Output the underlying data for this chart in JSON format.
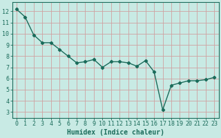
{
  "x": [
    0,
    1,
    2,
    3,
    4,
    5,
    6,
    7,
    8,
    9,
    10,
    11,
    12,
    13,
    14,
    15,
    16,
    17,
    18,
    19,
    20,
    21,
    22,
    23
  ],
  "y": [
    12.2,
    11.5,
    9.9,
    9.2,
    9.2,
    8.6,
    8.0,
    7.4,
    7.5,
    7.7,
    7.0,
    7.5,
    7.5,
    7.4,
    7.1,
    7.6,
    6.6,
    3.2,
    5.4,
    5.6,
    5.8,
    5.8,
    5.9,
    6.1
  ],
  "line_color": "#1a6b5a",
  "marker": "D",
  "marker_size": 2.2,
  "line_width": 1.0,
  "bg_color": "#c8eae4",
  "grid_color": "#aad4cc",
  "xlabel": "Humidex (Indice chaleur)",
  "xlabel_fontsize": 7,
  "ylabel_ticks": [
    3,
    4,
    5,
    6,
    7,
    8,
    9,
    10,
    11,
    12
  ],
  "xlim": [
    -0.5,
    23.5
  ],
  "ylim": [
    2.5,
    12.8
  ],
  "xtick_labels": [
    "0",
    "1",
    "2",
    "3",
    "4",
    "5",
    "6",
    "7",
    "8",
    "9",
    "10",
    "11",
    "12",
    "13",
    "14",
    "15",
    "16",
    "17",
    "18",
    "19",
    "20",
    "21",
    "22",
    "23"
  ],
  "tick_fontsize": 6.0
}
